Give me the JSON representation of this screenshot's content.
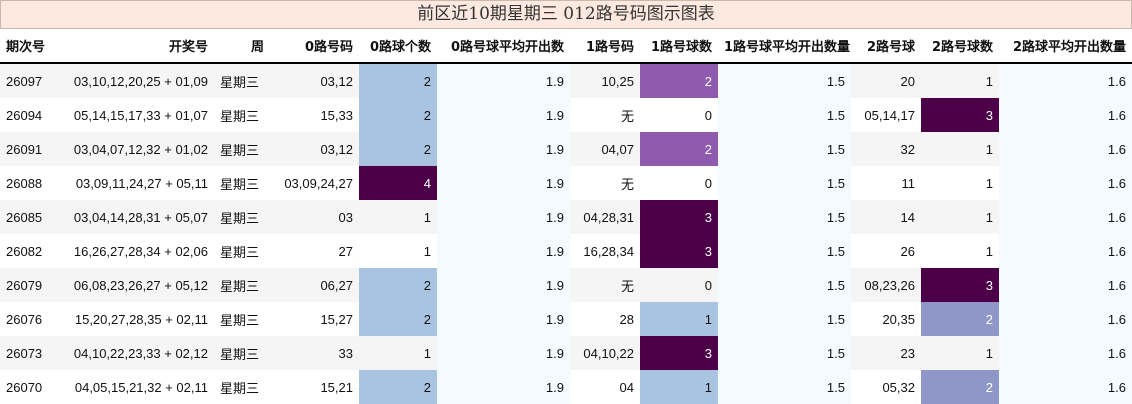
{
  "title": "前区近10期星期三 012路号码图示图表",
  "headers": [
    "期次号",
    "开奖号",
    "周",
    "0路号码",
    "0路球个数",
    "0路号球平均开出数",
    "1路号码",
    "1路号球数",
    "1路号球平均开出数量",
    "2路号球",
    "2路号球数",
    "2路球平均开出数量"
  ],
  "rows": [
    {
      "issue": "26097",
      "numbers": "03,10,12,20,25 + 01,09",
      "week": "星期三",
      "r0": "03,12",
      "c0": "2",
      "a0": "1.9",
      "r1": "10,25",
      "c1": "2",
      "a1": "1.5",
      "r2": "20",
      "c2": "1",
      "a2": "1.6"
    },
    {
      "issue": "26094",
      "numbers": "05,14,15,17,33 + 01,07",
      "week": "星期三",
      "r0": "15,33",
      "c0": "2",
      "a0": "1.9",
      "r1": "无",
      "c1": "0",
      "a1": "1.5",
      "r2": "05,14,17",
      "c2": "3",
      "a2": "1.6"
    },
    {
      "issue": "26091",
      "numbers": "03,04,07,12,32 + 01,02",
      "week": "星期三",
      "r0": "03,12",
      "c0": "2",
      "a0": "1.9",
      "r1": "04,07",
      "c1": "2",
      "a1": "1.5",
      "r2": "32",
      "c2": "1",
      "a2": "1.6"
    },
    {
      "issue": "26088",
      "numbers": "03,09,11,24,27 + 05,11",
      "week": "星期三",
      "r0": "03,09,24,27",
      "c0": "4",
      "a0": "1.9",
      "r1": "无",
      "c1": "0",
      "a1": "1.5",
      "r2": "11",
      "c2": "1",
      "a2": "1.6"
    },
    {
      "issue": "26085",
      "numbers": "03,04,14,28,31 + 05,07",
      "week": "星期三",
      "r0": "03",
      "c0": "1",
      "a0": "1.9",
      "r1": "04,28,31",
      "c1": "3",
      "a1": "1.5",
      "r2": "14",
      "c2": "1",
      "a2": "1.6"
    },
    {
      "issue": "26082",
      "numbers": "16,26,27,28,34 + 02,06",
      "week": "星期三",
      "r0": "27",
      "c0": "1",
      "a0": "1.9",
      "r1": "16,28,34",
      "c1": "3",
      "a1": "1.5",
      "r2": "26",
      "c2": "1",
      "a2": "1.6"
    },
    {
      "issue": "26079",
      "numbers": "06,08,23,26,27 + 05,12",
      "week": "星期三",
      "r0": "06,27",
      "c0": "2",
      "a0": "1.9",
      "r1": "无",
      "c1": "0",
      "a1": "1.5",
      "r2": "08,23,26",
      "c2": "3",
      "a2": "1.6"
    },
    {
      "issue": "26076",
      "numbers": "15,20,27,28,35 + 02,11",
      "week": "星期三",
      "r0": "15,27",
      "c0": "2",
      "a0": "1.9",
      "r1": "28",
      "c1": "1",
      "a1": "1.5",
      "r2": "20,35",
      "c2": "2",
      "a2": "1.6"
    },
    {
      "issue": "26073",
      "numbers": "04,10,22,23,33 + 02,12",
      "week": "星期三",
      "r0": "33",
      "c0": "1",
      "a0": "1.9",
      "r1": "04,10,22",
      "c1": "3",
      "a1": "1.5",
      "r2": "23",
      "c2": "1",
      "a2": "1.6"
    },
    {
      "issue": "26070",
      "numbers": "04,05,15,21,32 + 02,11",
      "week": "星期三",
      "r0": "15,21",
      "c0": "2",
      "a0": "1.9",
      "r1": "04",
      "c1": "1",
      "a1": "1.5",
      "r2": "05,32",
      "c2": "2",
      "a2": "1.6"
    }
  ],
  "cell_colors": {
    "c0": {
      "2": "#a8c4e0",
      "4": "#4b0048"
    },
    "c1": {
      "2": "#8e5bae",
      "3": "#4b0048",
      "1": "#a8c4e0"
    },
    "c2": {
      "3": "#4b0048",
      "2": "#8f96c8"
    }
  },
  "avg_background": "#f3fbfe",
  "title_background": "#fde9df"
}
